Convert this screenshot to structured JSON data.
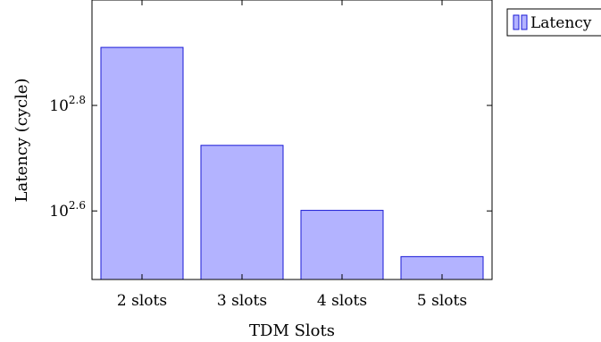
{
  "chart_data": {
    "type": "bar",
    "scale": "log10",
    "categories": [
      "2 slots",
      "3 slots",
      "4 slots",
      "5 slots"
    ],
    "series": [
      {
        "name": "Latency",
        "values": [
          813,
          530,
          399,
          326
        ]
      }
    ],
    "xlabel": "TDM Slots",
    "ylabel": "Latency (cycle)",
    "ylim": [
      295,
      1000
    ],
    "yticks": [
      {
        "value": 631,
        "base": "10",
        "exp": "2.8"
      },
      {
        "value": 398,
        "base": "10",
        "exp": "2.6"
      }
    ],
    "legend": {
      "position": "top-right-outside"
    },
    "bar_fill": "#b3b3ff",
    "bar_stroke": "#1a1ad6",
    "grid": false
  }
}
